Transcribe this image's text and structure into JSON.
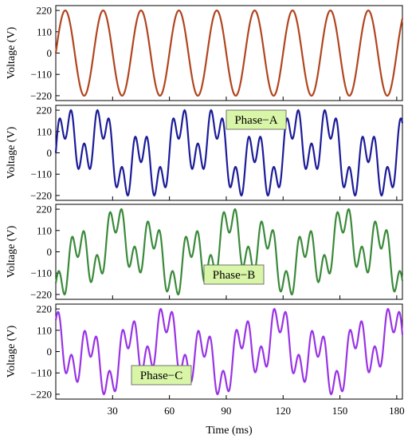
{
  "chart_data": {
    "type": "line",
    "xlabel": "Time (ms)",
    "xlim": [
      0,
      183
    ],
    "xticks": [
      30,
      60,
      90,
      120,
      150,
      180
    ],
    "panels": [
      {
        "ylabel": "Voltage (V)",
        "ylim": [
          -245,
          245
        ],
        "yticks": [
          220,
          110,
          0,
          -110,
          -220
        ],
        "series": [
          {
            "color": "#b1451e",
            "waveform": "sine",
            "amplitude": 220,
            "frequency_hz": 50,
            "phase_deg": 0
          }
        ]
      },
      {
        "ylabel": "Voltage (V)",
        "ylim": [
          -245,
          245
        ],
        "yticks": [
          220,
          110,
          0,
          -110,
          -220
        ],
        "annotation": "Phase−A",
        "series": [
          {
            "name": "Phase−A",
            "color": "#1c1c99",
            "waveform": "sine + 3rd harmonic + sub-harmonic",
            "fundamental_amplitude": 92,
            "harmonic3_amplitude": 68,
            "subharmonic_amplitude": 60,
            "peak_voltage": 220
          }
        ]
      },
      {
        "ylabel": "Voltage (V)",
        "ylim": [
          -245,
          245
        ],
        "yticks": [
          220,
          110,
          0,
          -110,
          -220
        ],
        "annotation": "Phase−B",
        "series": [
          {
            "name": "Phase−B",
            "color": "#3a8a3a",
            "waveform": "sine + 3rd harmonic + sub-harmonic",
            "fundamental_amplitude": 92,
            "harmonic3_amplitude": 68,
            "subharmonic_amplitude": 60,
            "peak_voltage": 220,
            "phase_shift_deg": -120
          }
        ]
      },
      {
        "ylabel": "Voltage (V)",
        "ylim": [
          -245,
          245
        ],
        "yticks": [
          220,
          110,
          0,
          -110,
          -220
        ],
        "annotation": "Phase−C",
        "series": [
          {
            "name": "Phase−C",
            "color": "#9933e6",
            "waveform": "sine + 3rd harmonic + sub-harmonic",
            "fundamental_amplitude": 92,
            "harmonic3_amplitude": 68,
            "subharmonic_amplitude": 60,
            "peak_voltage": 220,
            "phase_shift_deg": 120
          }
        ]
      }
    ]
  }
}
